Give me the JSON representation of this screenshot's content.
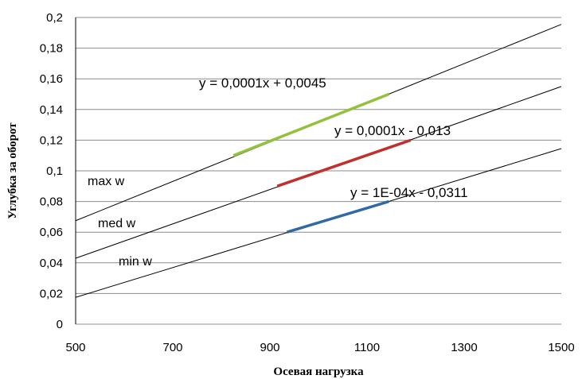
{
  "chart_data": {
    "type": "line",
    "title": "",
    "xlabel": "Осевая нагрузка",
    "ylabel": "Углубка за оборот",
    "xlim": [
      500,
      1500
    ],
    "ylim": [
      0,
      0.2
    ],
    "x_ticks": [
      {
        "value": 500,
        "label": "500"
      },
      {
        "value": 700,
        "label": "700"
      },
      {
        "value": 900,
        "label": "900"
      },
      {
        "value": 1100,
        "label": "1100"
      },
      {
        "value": 1300,
        "label": "1300"
      },
      {
        "value": 1500,
        "label": "1500"
      }
    ],
    "y_ticks": [
      {
        "value": 0,
        "label": "0"
      },
      {
        "value": 0.02,
        "label": "0,02"
      },
      {
        "value": 0.04,
        "label": "0,04"
      },
      {
        "value": 0.06,
        "label": "0,06"
      },
      {
        "value": 0.08,
        "label": "0,08"
      },
      {
        "value": 0.1,
        "label": "0,1"
      },
      {
        "value": 0.12,
        "label": "0,12"
      },
      {
        "value": 0.14,
        "label": "0,14"
      },
      {
        "value": 0.16,
        "label": "0,16"
      },
      {
        "value": 0.18,
        "label": "0,18"
      },
      {
        "value": 0.2,
        "label": "0,2"
      }
    ],
    "grid": "horizontal",
    "series": [
      {
        "name": "max w",
        "color": "#000000",
        "x": [
          500,
          1500
        ],
        "y": [
          0.0675,
          0.1955
        ]
      },
      {
        "name": "med w",
        "color": "#000000",
        "x": [
          500,
          1500
        ],
        "y": [
          0.043,
          0.155
        ]
      },
      {
        "name": "min w",
        "color": "#000000",
        "x": [
          500,
          1500
        ],
        "y": [
          0.0175,
          0.1145
        ]
      }
    ],
    "trendlines": [
      {
        "color": "#92c13e",
        "x": [
          825,
          1145
        ],
        "y": [
          0.11,
          0.15
        ],
        "equation": "y = 0,0001x + 0,0045"
      },
      {
        "color": "#c0312e",
        "x": [
          915,
          1190
        ],
        "y": [
          0.09,
          0.12
        ],
        "equation": "y = 0,0001x - 0,013"
      },
      {
        "color": "#2f6aa6",
        "x": [
          935,
          1145
        ],
        "y": [
          0.06,
          0.08
        ],
        "equation": "y = 1E-04x - 0,0311"
      }
    ]
  }
}
